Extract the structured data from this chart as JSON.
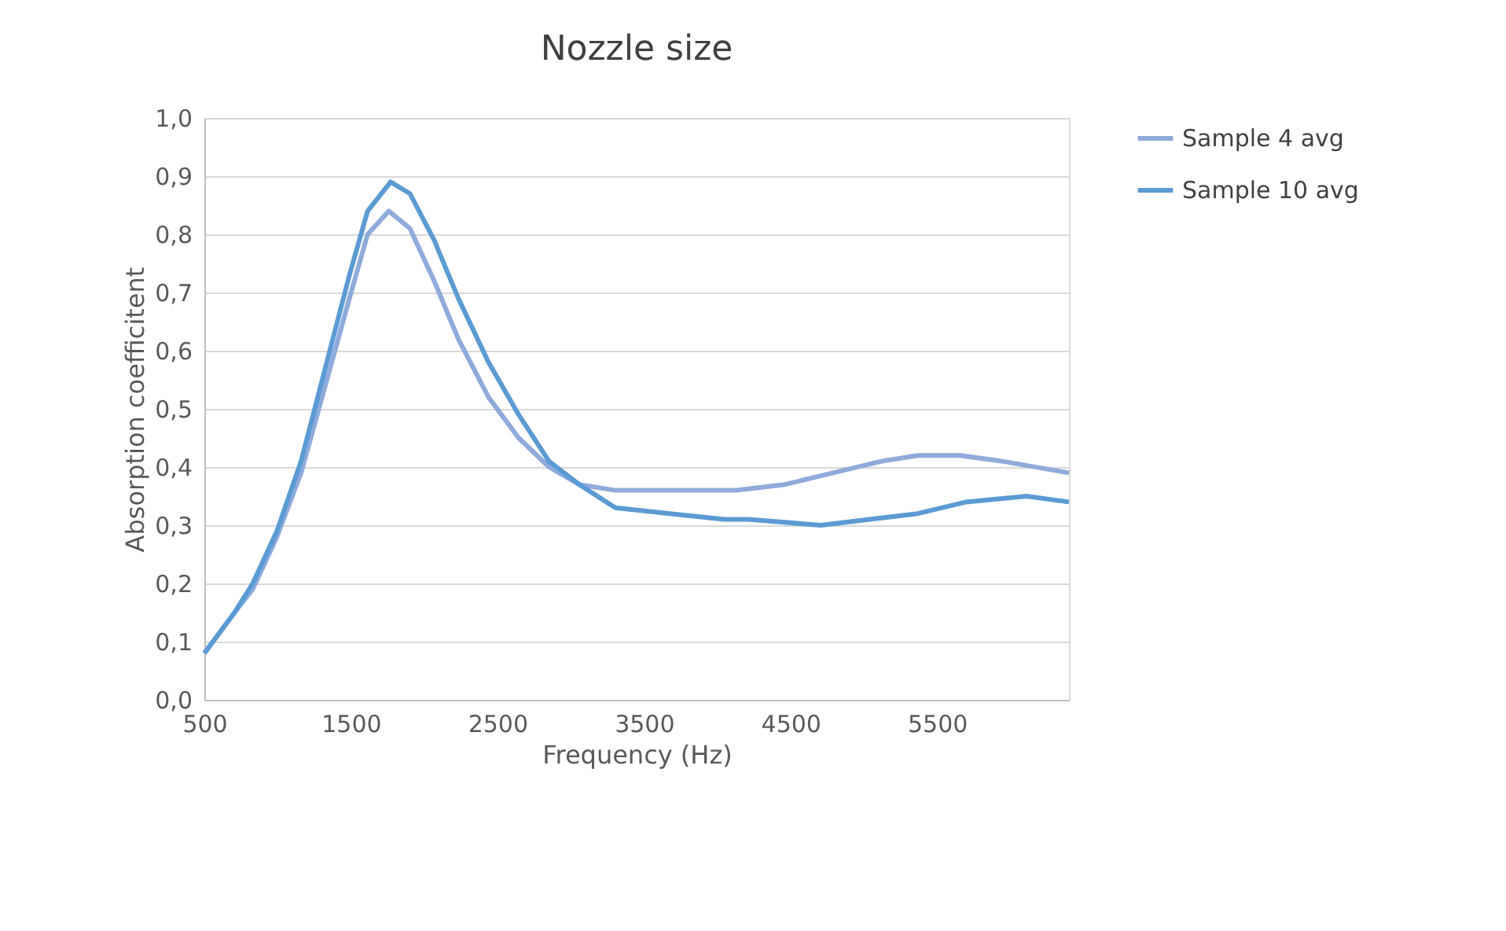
{
  "chart_data": {
    "type": "line",
    "title": "Nozzle size",
    "xlabel": "Frequency (Hz)",
    "ylabel": "Absorption coefficitent",
    "xlim": [
      500,
      6400
    ],
    "xticks": [
      500,
      1500,
      2500,
      3500,
      4500,
      5500
    ],
    "ylim": [
      0,
      1
    ],
    "yticks": [
      {
        "value": 0,
        "label": "0,0"
      },
      {
        "value": 0.1,
        "label": "0,1"
      },
      {
        "value": 0.2,
        "label": "0,2"
      },
      {
        "value": 0.3,
        "label": "0,3"
      },
      {
        "value": 0.4,
        "label": "0,4"
      },
      {
        "value": 0.5,
        "label": "0,5"
      },
      {
        "value": 0.6,
        "label": "0,6"
      },
      {
        "value": 0.7,
        "label": "0,7"
      },
      {
        "value": 0.8,
        "label": "0,8"
      },
      {
        "value": 0.9,
        "label": "0,9"
      },
      {
        "value": 1,
        "label": "1,0"
      }
    ],
    "grid": "y",
    "legend": "right",
    "line_style": "solid",
    "marker": "none",
    "series": [
      {
        "name": "Sample 4 avg",
        "color": "#8faadc",
        "x": [
          500,
          706,
          830,
          995,
          1160,
          1325,
          1490,
          1614,
          1758,
          1903,
          2068,
          2233,
          2439,
          2645,
          2852,
          3058,
          3305,
          3718,
          4130,
          4460,
          4790,
          5120,
          5368,
          5657,
          5946,
          6400
        ],
        "values": [
          0.08,
          0.15,
          0.19,
          0.28,
          0.39,
          0.54,
          0.69,
          0.8,
          0.84,
          0.81,
          0.72,
          0.62,
          0.52,
          0.45,
          0.4,
          0.37,
          0.36,
          0.36,
          0.36,
          0.37,
          0.39,
          0.41,
          0.42,
          0.42,
          0.41,
          0.39
        ]
      },
      {
        "name": "Sample 10 avg",
        "color": "#5b9bd5",
        "x": [
          500,
          706,
          830,
          995,
          1160,
          1325,
          1490,
          1614,
          1771,
          1903,
          2068,
          2233,
          2439,
          2645,
          2852,
          3058,
          3305,
          3677,
          4048,
          4213,
          4708,
          5038,
          5368,
          5698,
          6111,
          6400
        ],
        "values": [
          0.08,
          0.15,
          0.2,
          0.29,
          0.41,
          0.57,
          0.73,
          0.84,
          0.89,
          0.87,
          0.79,
          0.69,
          0.58,
          0.49,
          0.41,
          0.37,
          0.33,
          0.32,
          0.31,
          0.31,
          0.3,
          0.31,
          0.32,
          0.34,
          0.35,
          0.34
        ]
      }
    ]
  }
}
